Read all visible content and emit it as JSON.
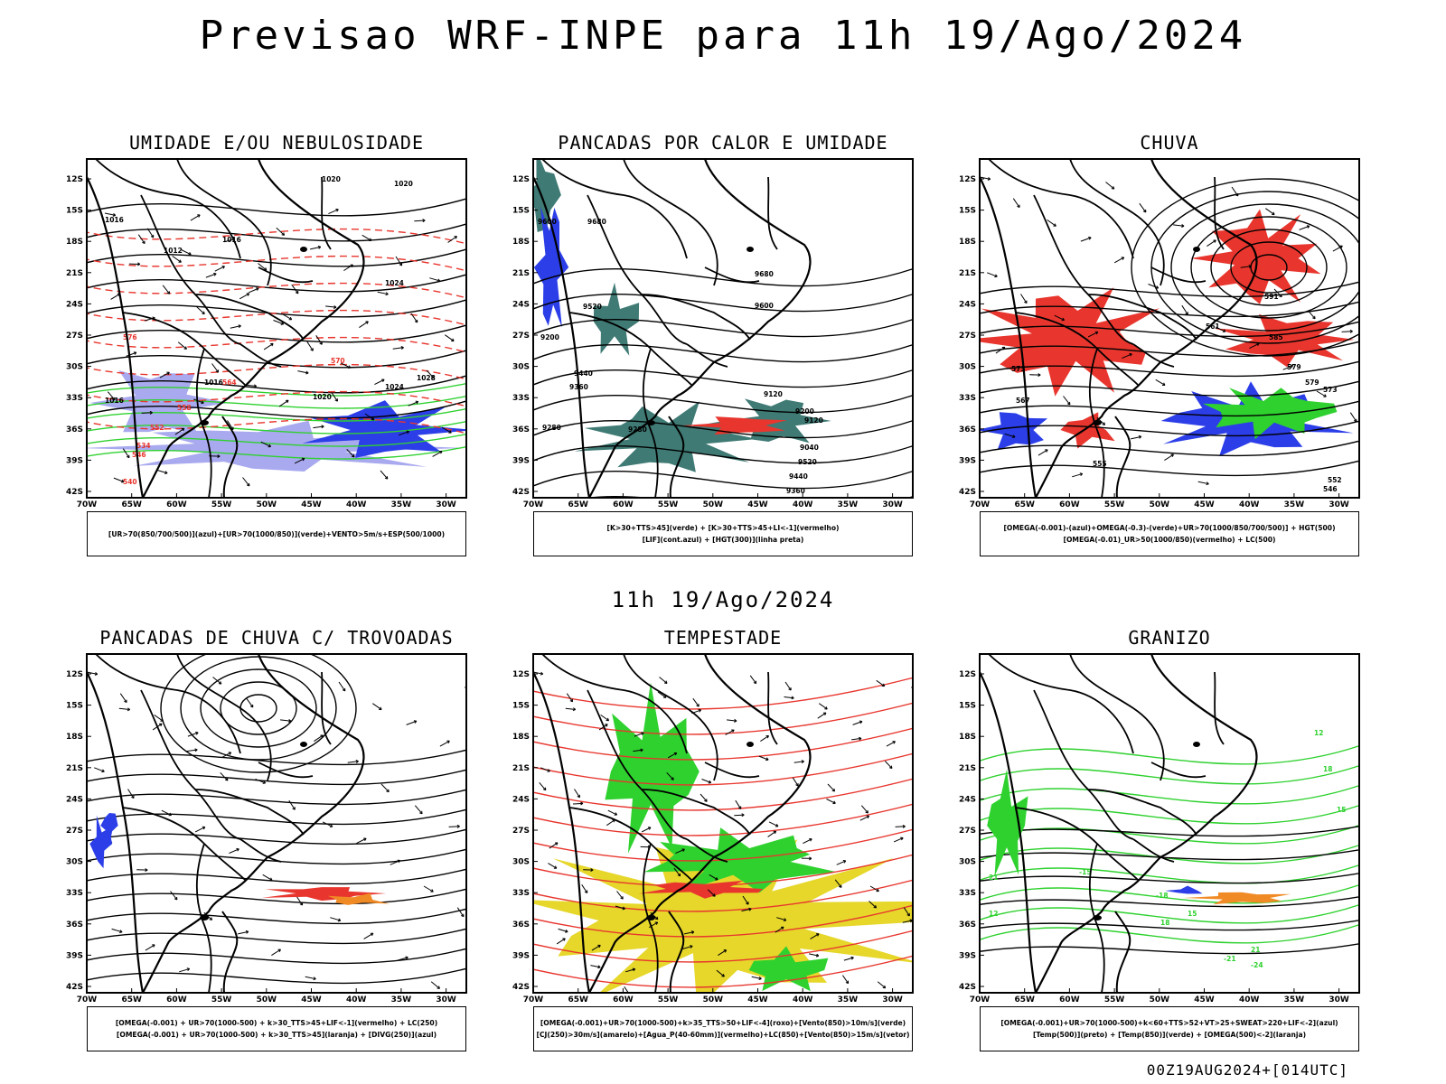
{
  "main_title": "Previsao WRF-INPE  para 11h 19/Ago/2024",
  "mid_title": "11h 19/Ago/2024",
  "footer": "00Z19AUG2024+[014UTC]",
  "axes": {
    "lat_labels": [
      "12S",
      "15S",
      "18S",
      "21S",
      "24S",
      "27S",
      "30S",
      "33S",
      "36S",
      "39S",
      "42S"
    ],
    "lon_labels": [
      "70W",
      "65W",
      "60W",
      "55W",
      "50W",
      "45W",
      "40W",
      "35W",
      "30W"
    ]
  },
  "colors": {
    "red": "#e8362e",
    "green": "#2fd12f",
    "blue": "#2b3ee8",
    "lavender": "#a9a9ef",
    "teal": "#3f7a74",
    "yellow": "#e6d72a",
    "orange": "#f08a25",
    "black": "#000000"
  },
  "panels": [
    {
      "id": "umidade",
      "title": "UMIDADE E/OU NEBULOSIDADE",
      "legend": [
        "[UR>70(850/700/500)](azul)+[UR>70(1000/850)](verde)+VENTO>5m/s+ESP(500/1000)"
      ],
      "contour_labels": [
        {
          "text": "1020"
        },
        {
          "text": "1020"
        },
        {
          "text": "1016"
        },
        {
          "text": "1012"
        },
        {
          "text": "1016"
        },
        {
          "text": "1024"
        },
        {
          "text": "1016"
        },
        {
          "text": "1016"
        },
        {
          "text": "1020"
        },
        {
          "text": "1024"
        },
        {
          "text": "1028"
        }
      ],
      "red_labels": [
        {
          "text": "570"
        },
        {
          "text": "564"
        },
        {
          "text": "558"
        },
        {
          "text": "552"
        },
        {
          "text": "546"
        },
        {
          "text": "540"
        },
        {
          "text": "534"
        },
        {
          "text": "576"
        }
      ]
    },
    {
      "id": "pancadas-calor",
      "title": "PANCADAS POR CALOR E UMIDADE",
      "legend": [
        "[K>30+TTS>45](verde) + [K>30+TTS>45+LI<-1](vermelho)",
        "[LIF](cont.azul) + [HGT(300)](linha preta)"
      ],
      "contour_labels": [
        {
          "text": "9600"
        },
        {
          "text": "9680"
        },
        {
          "text": "9680"
        },
        {
          "text": "9600"
        },
        {
          "text": "9520"
        },
        {
          "text": "9440"
        },
        {
          "text": "9360"
        },
        {
          "text": "9280"
        },
        {
          "text": "9200"
        },
        {
          "text": "9120"
        },
        {
          "text": "9040"
        },
        {
          "text": "9520"
        },
        {
          "text": "9440"
        },
        {
          "text": "9360"
        },
        {
          "text": "9280"
        },
        {
          "text": "9120"
        },
        {
          "text": "9200"
        }
      ]
    },
    {
      "id": "chuva",
      "title": "CHUVA",
      "legend": [
        "[OMEGA(-0.001)-(azul)+OMEGA(-0.3)-(verde)+UR>70(1000/850/700/500)] + HGT(500)",
        "[OMEGA(-0.01)_UR>50(1000/850)(vermelho) + LC(500)"
      ],
      "contour_labels": [
        {
          "text": "591"
        },
        {
          "text": "585"
        },
        {
          "text": "579"
        },
        {
          "text": "573"
        },
        {
          "text": "567"
        },
        {
          "text": "561"
        },
        {
          "text": "555"
        },
        {
          "text": "579"
        },
        {
          "text": "573"
        },
        {
          "text": "552"
        },
        {
          "text": "546"
        }
      ]
    },
    {
      "id": "trovoadas",
      "title": "PANCADAS DE CHUVA C/ TROVOADAS",
      "legend": [
        "[OMEGA(-0.001) + UR>70(1000-500) + k>30_TTS>45+LIF<-1](vermelho) + LC(250)",
        "[OMEGA(-0.001) + UR>70(1000-500) + k>30_TTS>45](laranja) + [DIVG(250)](azul)"
      ]
    },
    {
      "id": "tempestade",
      "title": "TEMPESTADE",
      "legend": [
        "[OMEGA(-0.001)+UR>70(1000-500)+k>35_TTS>50+LIF<-4](roxo)+[Vento(850)>10m/s](verde)",
        "[CJ(250)>30m/s](amarelo)+[Agua_P(40-60mm)](vermelho)+LC(850)+[Vento(850)>15m/s](vetor)"
      ]
    },
    {
      "id": "granizo",
      "title": "GRANIZO",
      "legend": [
        "[OMEGA(-0.001)+UR>70(1000-500)+k<60+TTS>52+VT>25+SWEAT>220+LIF<-2](azul)",
        "[Temp(500)](preto) + [Temp(850)](verde) + [OMEGA(500)<-2](laranja)"
      ],
      "contour_labels": [
        {
          "text": "12"
        },
        {
          "text": "15"
        },
        {
          "text": "18"
        },
        {
          "text": "21"
        },
        {
          "text": "-15"
        },
        {
          "text": "-18"
        },
        {
          "text": "-21"
        },
        {
          "text": "-24"
        },
        {
          "text": "12"
        },
        {
          "text": "15"
        },
        {
          "text": "18"
        },
        {
          "text": "21"
        }
      ]
    }
  ]
}
